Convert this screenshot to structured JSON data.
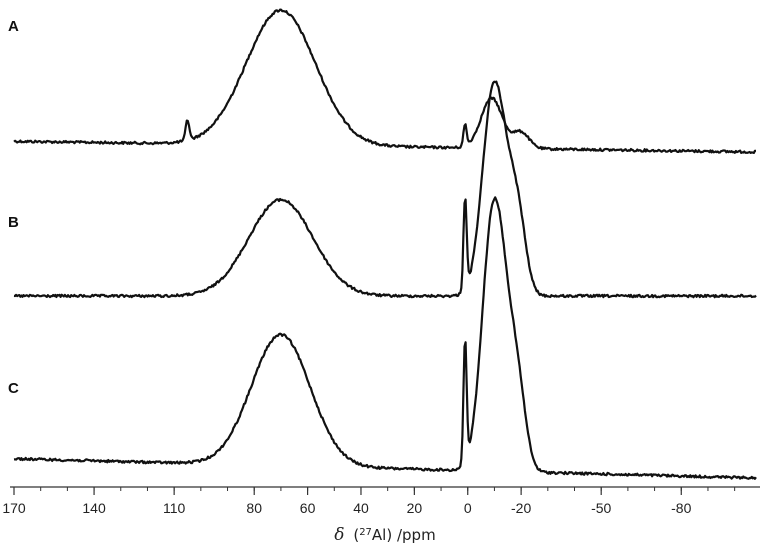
{
  "chart_data": {
    "type": "line",
    "xlabel_symbol": "δ",
    "xlabel_rest": "(",
    "xlabel_isotope_mass": "27",
    "xlabel_element": "Al",
    "xlabel_unit": ") /ppm",
    "x_reversed": true,
    "xlim": [
      170,
      -108
    ],
    "x_ticks": [
      170,
      140,
      110,
      80,
      60,
      40,
      20,
      0,
      -20,
      -50,
      -80
    ],
    "grid": false,
    "legend": "none",
    "series": [
      {
        "name": "A",
        "peaks": [
          {
            "center": 70,
            "height": 1.0,
            "width": 13
          },
          {
            "center": 105,
            "height": 0.15,
            "width": 0.7
          },
          {
            "center": 1,
            "height": 0.16,
            "width": 0.6
          },
          {
            "center": -9,
            "height": 0.37,
            "width": 4
          },
          {
            "center": -20,
            "height": 0.12,
            "width": 3
          }
        ],
        "baseline_left": 0.02,
        "baseline_right": 0.0
      },
      {
        "name": "B",
        "peaks": [
          {
            "center": 70,
            "height": 0.56,
            "width": 12
          },
          {
            "center": 1,
            "height": 0.54,
            "width": 0.6
          },
          {
            "center": -9,
            "height": 1.0,
            "width": 4
          },
          {
            "center": -14,
            "height": 0.45,
            "width": 4
          },
          {
            "center": -19,
            "height": 0.35,
            "width": 3
          }
        ],
        "baseline_left": 0.0,
        "baseline_right": 0.0
      },
      {
        "name": "C",
        "peaks": [
          {
            "center": 70,
            "height": 0.72,
            "width": 11
          },
          {
            "center": 1,
            "height": 0.67,
            "width": 0.6
          },
          {
            "center": -9,
            "height": 1.2,
            "width": 4
          },
          {
            "center": -14,
            "height": 0.55,
            "width": 4
          },
          {
            "center": -19,
            "height": 0.32,
            "width": 3
          }
        ],
        "baseline_left": 0.04,
        "baseline_right": 0.0
      }
    ]
  }
}
